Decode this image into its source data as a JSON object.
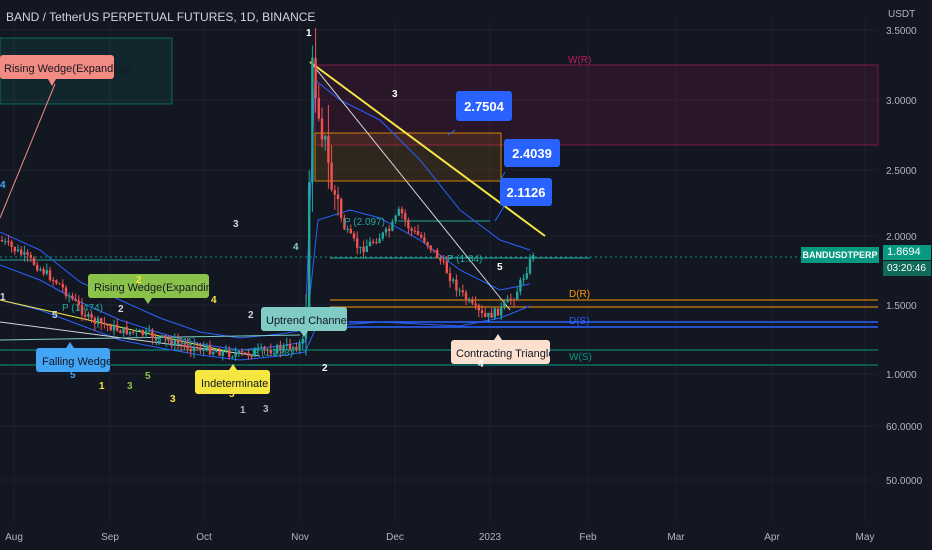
{
  "header": {
    "title": "BAND / TetherUS PERPETUAL FUTURES, 1D, BINANCE",
    "currency": "USDT"
  },
  "price_tag": {
    "symbol": "BANDUSDTPERP",
    "price": "1.8694",
    "countdown": "03:20:46"
  },
  "colors": {
    "background": "#131722",
    "up": "#26a69a",
    "down": "#ef5350",
    "bollinger": "#2962ff",
    "trendline": "#f5e642",
    "resistance": "#ff9800",
    "support_blue": "#2962ff",
    "weekly_support": "#089981",
    "weekly_resistance": "#c2185b",
    "callout": "#2962ff"
  },
  "chart_data": {
    "type": "candlestick",
    "symbol": "BANDUSDTPERP",
    "timeframe": "1D",
    "yaxis": {
      "scale": "log",
      "tick_labels": [
        "3.5000",
        "3.0000",
        "2.5000",
        "2.0000",
        "1.5000",
        "1.0000",
        "60.0000",
        "50.0000"
      ]
    },
    "xaxis": {
      "tick_labels": [
        "Aug",
        "Sep",
        "Oct",
        "Nov",
        "Dec",
        "2023",
        "Feb",
        "Mar",
        "Apr",
        "May"
      ]
    },
    "last_price": 1.8694,
    "price_callouts": [
      2.7504,
      2.4039,
      2.1126
    ],
    "pivot_labels": [
      "P (2.097)",
      "P (1.84)",
      "P (1.474)",
      "P (1.241)",
      "P (1.138)"
    ],
    "level_labels": [
      "W(R)",
      "D(R)",
      "D(S)",
      "W(S)"
    ],
    "pattern_labels": [
      "Rising Wedge(Expanding)",
      "Rising Wedge(Expanding)",
      "Falling Wedge",
      "Indeterminate",
      "Uptrend Channel",
      "Contracting Triangle"
    ],
    "wave_labels": [
      "1",
      "2",
      "3",
      "4",
      "5",
      "1",
      "2",
      "3",
      "4",
      "5",
      "3",
      "5",
      "1",
      "3",
      "4",
      "5",
      "2",
      "2",
      "1",
      "3",
      "5",
      "4"
    ],
    "grid": true,
    "legend": "none"
  }
}
